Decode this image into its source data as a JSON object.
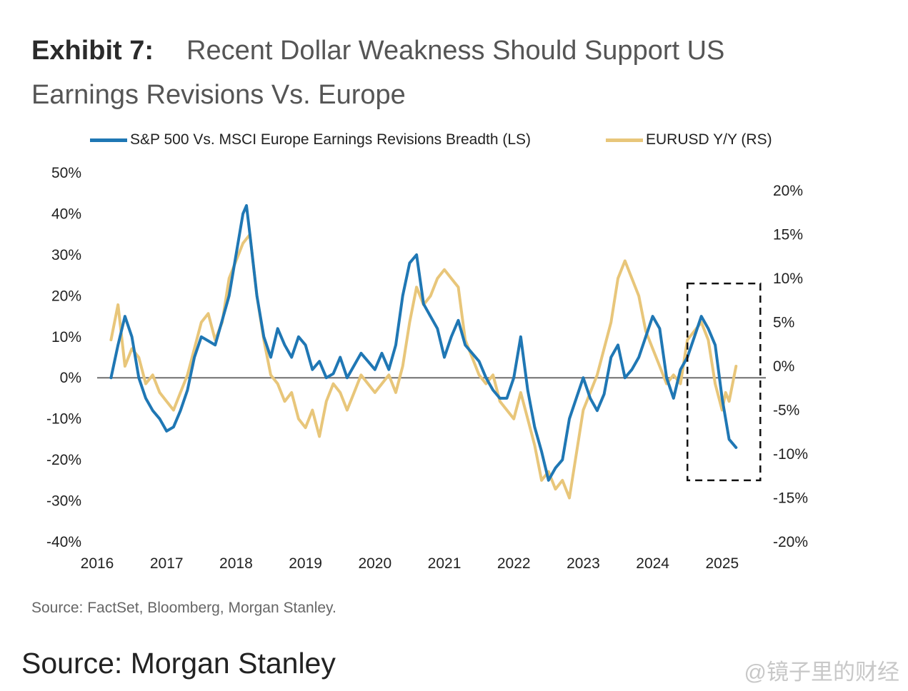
{
  "title": {
    "exhibit": "Exhibit 7:",
    "line1": "Recent Dollar Weakness Should Support US",
    "line2": "Earnings Revisions Vs. Europe"
  },
  "source_note": "Source: FactSet, Bloomberg, Morgan Stanley.",
  "footer": "Source: Morgan Stanley",
  "watermark": "@镜子里的财经",
  "colors": {
    "blue": "#1f77b4",
    "gold": "#e8c67a",
    "zero_line": "#6f6f6f",
    "box": "#111111"
  },
  "chart_data": {
    "type": "line",
    "title": "Recent Dollar Weakness Should Support US Earnings Revisions Vs. Europe",
    "x_ticks": [
      "2016",
      "2017",
      "2018",
      "2019",
      "2020",
      "2021",
      "2022",
      "2023",
      "2024",
      "2025"
    ],
    "x_range": [
      2016.0,
      2025.3
    ],
    "y_left": {
      "ticks": [
        "50%",
        "40%",
        "30%",
        "20%",
        "10%",
        "0%",
        "-10%",
        "-20%",
        "-30%",
        "-40%"
      ],
      "range": [
        -40,
        50
      ]
    },
    "y_right": {
      "ticks": [
        "20%",
        "15%",
        "10%",
        "5%",
        "0%",
        "-5%",
        "-10%",
        "-15%",
        "-20%"
      ],
      "range": [
        -20,
        20
      ]
    },
    "highlight_box": {
      "x_range": [
        2024.5,
        2025.55
      ],
      "y_range": [
        -25,
        23
      ]
    },
    "series": [
      {
        "name": "S&P 500 Vs. MSCI Europe Earnings Revisions Breadth (LS)",
        "axis": "left",
        "color": "#1f77b4",
        "x": [
          2016.2,
          2016.3,
          2016.4,
          2016.5,
          2016.6,
          2016.7,
          2016.8,
          2016.9,
          2017.0,
          2017.1,
          2017.2,
          2017.3,
          2017.4,
          2017.5,
          2017.6,
          2017.7,
          2017.8,
          2017.9,
          2018.0,
          2018.1,
          2018.15,
          2018.2,
          2018.3,
          2018.4,
          2018.5,
          2018.6,
          2018.7,
          2018.8,
          2018.9,
          2019.0,
          2019.1,
          2019.2,
          2019.3,
          2019.4,
          2019.5,
          2019.6,
          2019.7,
          2019.8,
          2019.9,
          2020.0,
          2020.1,
          2020.2,
          2020.3,
          2020.4,
          2020.5,
          2020.6,
          2020.7,
          2020.8,
          2020.9,
          2021.0,
          2021.1,
          2021.2,
          2021.3,
          2021.4,
          2021.5,
          2021.6,
          2021.7,
          2021.8,
          2021.9,
          2022.0,
          2022.1,
          2022.2,
          2022.3,
          2022.4,
          2022.5,
          2022.6,
          2022.7,
          2022.8,
          2022.9,
          2023.0,
          2023.1,
          2023.2,
          2023.3,
          2023.4,
          2023.5,
          2023.6,
          2023.7,
          2023.8,
          2023.9,
          2024.0,
          2024.1,
          2024.2,
          2024.3,
          2024.4,
          2024.5,
          2024.6,
          2024.7,
          2024.8,
          2024.9,
          2025.0,
          2025.1,
          2025.2
        ],
        "values": [
          0,
          8,
          15,
          10,
          0,
          -5,
          -8,
          -10,
          -13,
          -12,
          -8,
          -3,
          5,
          10,
          9,
          8,
          14,
          20,
          30,
          40,
          42,
          35,
          20,
          10,
          5,
          12,
          8,
          5,
          10,
          8,
          2,
          4,
          0,
          1,
          5,
          0,
          3,
          6,
          4,
          2,
          6,
          2,
          8,
          20,
          28,
          30,
          18,
          15,
          12,
          5,
          10,
          14,
          8,
          6,
          4,
          0,
          -3,
          -5,
          -5,
          0,
          10,
          -3,
          -12,
          -18,
          -25,
          -22,
          -20,
          -10,
          -5,
          0,
          -5,
          -8,
          -4,
          5,
          8,
          0,
          2,
          5,
          10,
          15,
          12,
          0,
          -5,
          2,
          5,
          10,
          15,
          12,
          8,
          -5,
          -15,
          -17
        ]
      },
      {
        "name": "EURUSD Y/Y (RS)",
        "axis": "right",
        "color": "#e8c67a",
        "x": [
          2016.2,
          2016.3,
          2016.4,
          2016.5,
          2016.6,
          2016.7,
          2016.8,
          2016.9,
          2017.0,
          2017.1,
          2017.2,
          2017.3,
          2017.4,
          2017.5,
          2017.6,
          2017.7,
          2017.8,
          2017.9,
          2018.0,
          2018.1,
          2018.2,
          2018.3,
          2018.4,
          2018.5,
          2018.6,
          2018.7,
          2018.8,
          2018.9,
          2019.0,
          2019.1,
          2019.2,
          2019.3,
          2019.4,
          2019.5,
          2019.6,
          2019.7,
          2019.8,
          2019.9,
          2020.0,
          2020.1,
          2020.2,
          2020.3,
          2020.4,
          2020.5,
          2020.6,
          2020.7,
          2020.8,
          2020.9,
          2021.0,
          2021.1,
          2021.2,
          2021.3,
          2021.4,
          2021.5,
          2021.6,
          2021.7,
          2021.8,
          2021.9,
          2022.0,
          2022.1,
          2022.2,
          2022.3,
          2022.4,
          2022.5,
          2022.6,
          2022.7,
          2022.8,
          2022.9,
          2023.0,
          2023.1,
          2023.2,
          2023.3,
          2023.4,
          2023.5,
          2023.6,
          2023.7,
          2023.8,
          2023.9,
          2024.0,
          2024.1,
          2024.2,
          2024.3,
          2024.4,
          2024.5,
          2024.6,
          2024.7,
          2024.8,
          2024.9,
          2025.0,
          2025.05,
          2025.1,
          2025.2
        ],
        "values": [
          3,
          7,
          0,
          2,
          1,
          -2,
          -1,
          -3,
          -4,
          -5,
          -3,
          -1,
          2,
          5,
          6,
          3,
          5,
          10,
          12,
          14,
          15,
          8,
          3,
          -1,
          -2,
          -4,
          -3,
          -6,
          -7,
          -5,
          -8,
          -4,
          -2,
          -3,
          -5,
          -3,
          -1,
          -2,
          -3,
          -2,
          -1,
          -3,
          0,
          5,
          9,
          7,
          8,
          10,
          11,
          10,
          9,
          3,
          1,
          -1,
          -2,
          -1,
          -4,
          -5,
          -6,
          -3,
          -6,
          -9,
          -13,
          -12,
          -14,
          -13,
          -15,
          -10,
          -5,
          -3,
          -1,
          2,
          5,
          10,
          12,
          10,
          8,
          4,
          2,
          0,
          -2,
          -1,
          -2,
          3,
          4,
          5,
          3,
          -2,
          -5,
          -3,
          -4,
          0
        ]
      }
    ]
  }
}
